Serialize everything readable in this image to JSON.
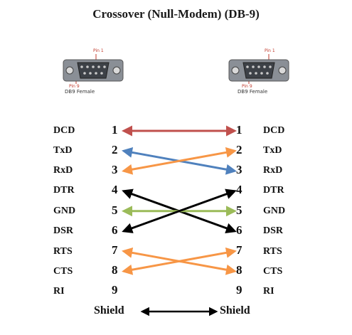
{
  "title": "Crossover (Null-Modem) (DB-9)",
  "connectors": {
    "left": {
      "pin_top": "Pin 1",
      "pin_bottom": "Pin 9",
      "caption": "DB9 Female"
    },
    "right": {
      "pin_top": "Pin 1",
      "pin_bottom": "Pin 9",
      "caption": "DB9 Female"
    }
  },
  "left_pins": [
    {
      "signal": "DCD",
      "number": "1"
    },
    {
      "signal": "TxD",
      "number": "2"
    },
    {
      "signal": "RxD",
      "number": "3"
    },
    {
      "signal": "DTR",
      "number": "4"
    },
    {
      "signal": "GND",
      "number": "5"
    },
    {
      "signal": "DSR",
      "number": "6"
    },
    {
      "signal": "RTS",
      "number": "7"
    },
    {
      "signal": "CTS",
      "number": "8"
    },
    {
      "signal": "RI",
      "number": "9"
    }
  ],
  "right_pins": [
    {
      "signal": "DCD",
      "number": "1"
    },
    {
      "signal": "TxD",
      "number": "2"
    },
    {
      "signal": "RxD",
      "number": "3"
    },
    {
      "signal": "DTR",
      "number": "4"
    },
    {
      "signal": "GND",
      "number": "5"
    },
    {
      "signal": "DSR",
      "number": "6"
    },
    {
      "signal": "RTS",
      "number": "7"
    },
    {
      "signal": "CTS",
      "number": "8"
    },
    {
      "signal": "RI",
      "number": "9"
    }
  ],
  "shield": {
    "left": "Shield",
    "right": "Shield"
  },
  "wires": [
    {
      "from": 1,
      "to": 1,
      "color": "#c0504d",
      "heads": "both"
    },
    {
      "from": 2,
      "to": 3,
      "color": "#4f81bd",
      "heads": "both"
    },
    {
      "from": 3,
      "to": 2,
      "color": "#f79646",
      "heads": "both"
    },
    {
      "from": 4,
      "to": 6,
      "color": "#000000",
      "heads": "both"
    },
    {
      "from": 5,
      "to": 5,
      "color": "#9bbb59",
      "heads": "both"
    },
    {
      "from": 6,
      "to": 4,
      "color": "#000000",
      "heads": "both"
    },
    {
      "from": 7,
      "to": 8,
      "color": "#f79646",
      "heads": "both"
    },
    {
      "from": 8,
      "to": 7,
      "color": "#f79646",
      "heads": "both"
    }
  ]
}
